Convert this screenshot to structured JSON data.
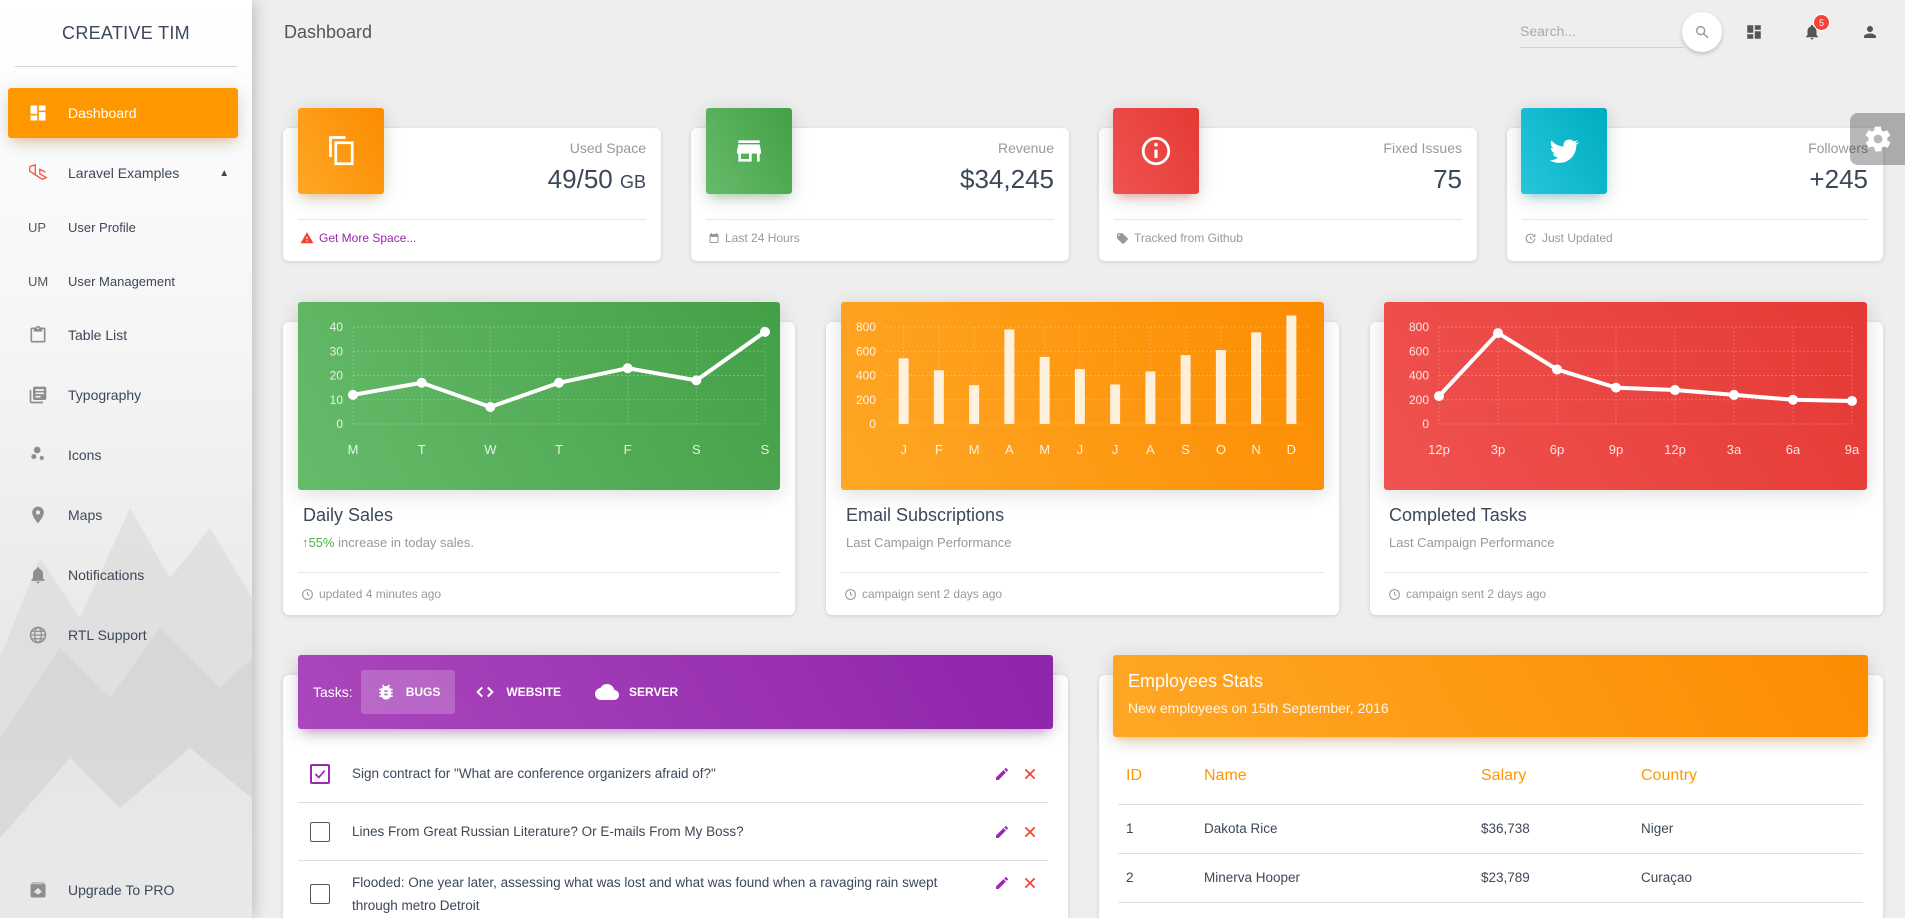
{
  "sidebar": {
    "brand": "CREATIVE TIM",
    "items": [
      {
        "label": "Dashboard",
        "icon": "dashboard-icon"
      },
      {
        "label": "Laravel Examples",
        "icon": "laravel-icon"
      },
      {
        "abbr": "UP",
        "label": "User Profile"
      },
      {
        "abbr": "UM",
        "label": "User Management"
      },
      {
        "label": "Table List",
        "icon": "clipboard-icon"
      },
      {
        "label": "Typography",
        "icon": "library-books-icon"
      },
      {
        "label": "Icons",
        "icon": "bubble-chart-icon"
      },
      {
        "label": "Maps",
        "icon": "location-icon"
      },
      {
        "label": "Notifications",
        "icon": "bell-icon"
      },
      {
        "label": "RTL Support",
        "icon": "language-icon"
      },
      {
        "label": "Upgrade To PRO",
        "icon": "unarchive-icon"
      }
    ]
  },
  "topbar": {
    "title": "Dashboard",
    "search_placeholder": "Search...",
    "notification_count": "5"
  },
  "stats": [
    {
      "category": "Used Space",
      "value": "49/50",
      "unit": "GB",
      "footer": "Get More Space...",
      "color": "#ff9800",
      "icon": "copy-icon",
      "footer_icon": "warning-icon"
    },
    {
      "category": "Revenue",
      "value": "$34,245",
      "footer": "Last 24 Hours",
      "color": "#4caf50",
      "icon": "store-icon",
      "footer_icon": "calendar-icon"
    },
    {
      "category": "Fixed Issues",
      "value": "75",
      "footer": "Tracked from Github",
      "color": "#f44336",
      "icon": "info-icon",
      "footer_icon": "tag-icon"
    },
    {
      "category": "Followers",
      "value": "+245",
      "footer": "Just Updated",
      "color": "#00bcd4",
      "icon": "twitter-icon",
      "footer_icon": "update-icon"
    }
  ],
  "charts": [
    {
      "title": "Daily Sales",
      "subtitle_highlight": "55%",
      "subtitle_rest": " increase in today sales.",
      "footer": "updated 4 minutes ago",
      "color": "#4caf50"
    },
    {
      "title": "Email Subscriptions",
      "subtitle": "Last Campaign Performance",
      "footer": "campaign sent 2 days ago",
      "color": "#ff9800"
    },
    {
      "title": "Completed Tasks",
      "subtitle": "Last Campaign Performance",
      "footer": "campaign sent 2 days ago",
      "color": "#f44336"
    }
  ],
  "chart_data": [
    {
      "type": "line",
      "categories": [
        "M",
        "T",
        "W",
        "T",
        "F",
        "S",
        "S"
      ],
      "values": [
        12,
        17,
        7,
        17,
        23,
        18,
        38
      ],
      "ylim": [
        0,
        40
      ],
      "yticks": [
        0,
        10,
        20,
        30,
        40
      ]
    },
    {
      "type": "bar",
      "categories": [
        "J",
        "F",
        "M",
        "A",
        "M",
        "J",
        "J",
        "A",
        "S",
        "O",
        "N",
        "D"
      ],
      "values": [
        542,
        443,
        320,
        780,
        553,
        453,
        326,
        434,
        568,
        610,
        756,
        895
      ],
      "ylim": [
        0,
        800
      ],
      "yticks": [
        0,
        200,
        400,
        600,
        800
      ]
    },
    {
      "type": "line",
      "categories": [
        "12p",
        "3p",
        "6p",
        "9p",
        "12p",
        "3a",
        "6a",
        "9a"
      ],
      "values": [
        230,
        750,
        450,
        300,
        280,
        240,
        200,
        190
      ],
      "ylim": [
        0,
        800
      ],
      "yticks": [
        0,
        200,
        400,
        600,
        800
      ]
    }
  ],
  "tasks": {
    "label": "Tasks:",
    "tabs": [
      {
        "label": "BUGS",
        "icon": "bug-icon"
      },
      {
        "label": "WEBSITE",
        "icon": "code-icon"
      },
      {
        "label": "SERVER",
        "icon": "cloud-icon"
      }
    ],
    "items": [
      {
        "text": "Sign contract for \"What are conference organizers afraid of?\"",
        "checked": true
      },
      {
        "text": "Lines From Great Russian Literature? Or E-mails From My Boss?",
        "checked": false
      },
      {
        "text": "Flooded: One year later, assessing what was lost and what was found when a ravaging rain swept through metro Detroit",
        "checked": false
      }
    ]
  },
  "employees": {
    "title": "Employees Stats",
    "subtitle": "New employees on 15th September, 2016",
    "columns": [
      "ID",
      "Name",
      "Salary",
      "Country"
    ],
    "rows": [
      [
        "1",
        "Dakota Rice",
        "$36,738",
        "Niger"
      ],
      [
        "2",
        "Minerva Hooper",
        "$23,789",
        "Curaçao"
      ]
    ]
  }
}
